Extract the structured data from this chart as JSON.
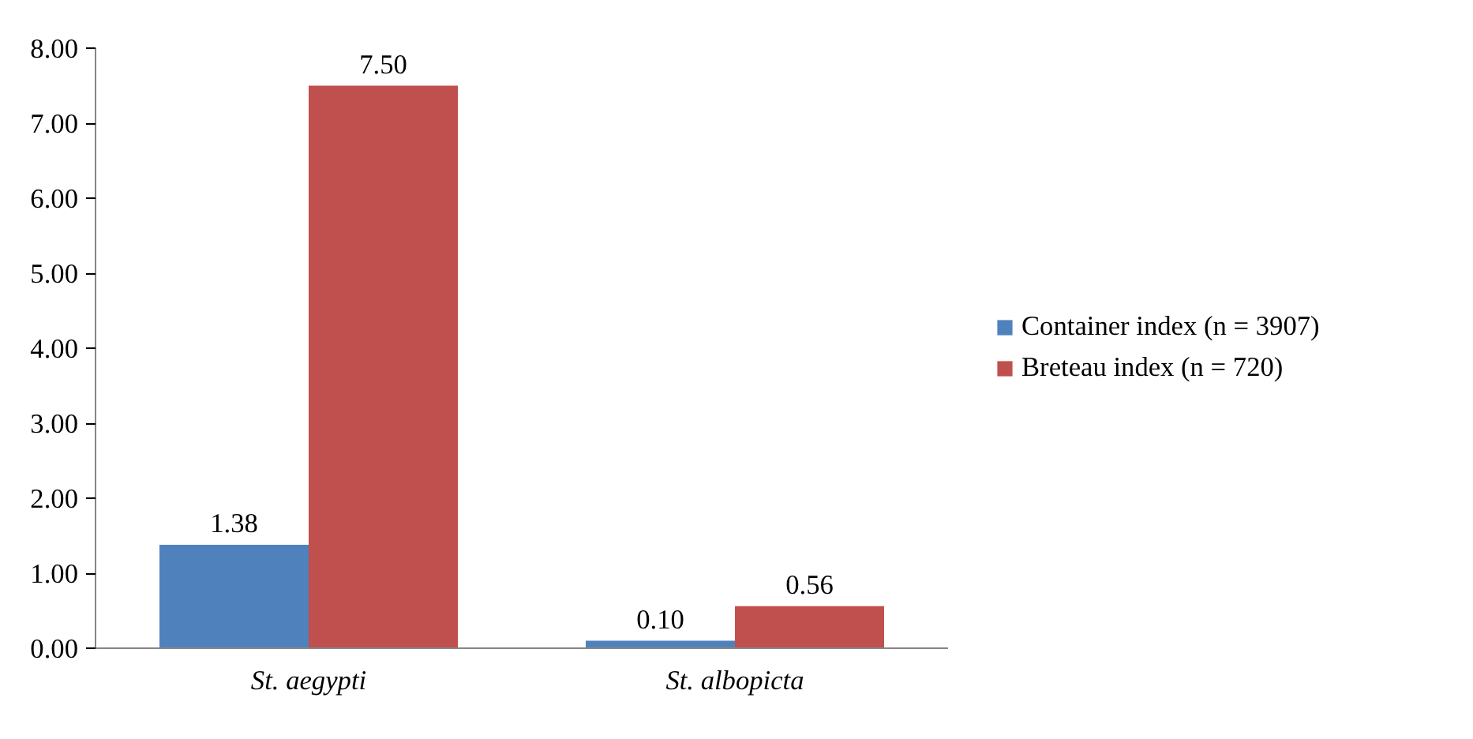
{
  "chart_data": {
    "type": "bar",
    "categories": [
      "St. aegypti",
      "St. albopicta"
    ],
    "series": [
      {
        "name": "Container index (n = 3907)",
        "color": "#4f81bd",
        "values": [
          1.38,
          0.1
        ],
        "value_labels": [
          "1.38",
          "0.10"
        ]
      },
      {
        "name": "Breteau index (n = 720)",
        "color": "#c0504d",
        "values": [
          7.5,
          0.56
        ],
        "value_labels": [
          "7.50",
          "0.56"
        ]
      }
    ],
    "ylim": [
      0,
      8
    ],
    "yticks": [
      {
        "value": 0,
        "label": "0.00"
      },
      {
        "value": 1,
        "label": "1.00"
      },
      {
        "value": 2,
        "label": "2.00"
      },
      {
        "value": 3,
        "label": "3.00"
      },
      {
        "value": 4,
        "label": "4.00"
      },
      {
        "value": 5,
        "label": "5.00"
      },
      {
        "value": 6,
        "label": "6.00"
      },
      {
        "value": 7,
        "label": "7.00"
      },
      {
        "value": 8,
        "label": "8.00"
      }
    ],
    "grid": false,
    "legend": "right"
  }
}
